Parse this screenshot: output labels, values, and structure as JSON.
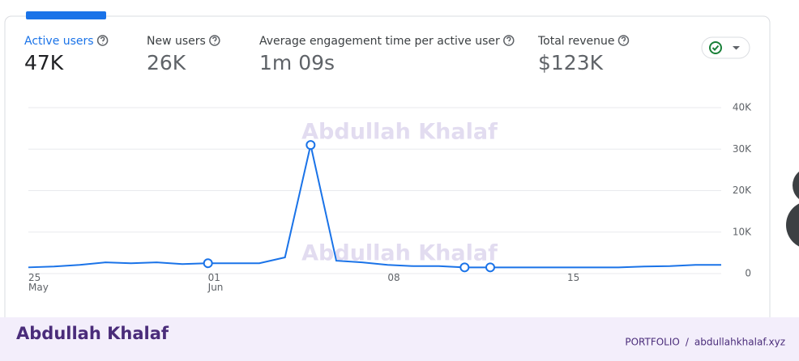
{
  "metrics": [
    {
      "label": "Active users",
      "value": "47K"
    },
    {
      "label": "New users",
      "value": "26K"
    },
    {
      "label": "Average engagement time per active user",
      "value": "1m 09s"
    },
    {
      "label": "Total revenue",
      "value": "$123K"
    }
  ],
  "watermark": "Abdullah Khalaf",
  "chart_data": {
    "type": "line",
    "categories": [
      "25\nMay",
      null,
      null,
      null,
      null,
      null,
      null,
      "01\nJun",
      null,
      null,
      null,
      null,
      null,
      null,
      "08",
      null,
      null,
      null,
      null,
      null,
      null,
      "15",
      null,
      null,
      null,
      null,
      null,
      null
    ],
    "series": [
      {
        "name": "Active users",
        "color": "#1a73e8",
        "values": [
          1500,
          1700,
          2100,
          2700,
          2500,
          2700,
          2300,
          2500,
          2500,
          2500,
          3900,
          31000,
          3100,
          2700,
          2100,
          1800,
          1800,
          1500,
          1500,
          1500,
          1500,
          1500,
          1500,
          1500,
          1700,
          1800,
          2100,
          2100
        ],
        "marker_indices": [
          7,
          11,
          17,
          18
        ]
      }
    ],
    "ylim": [
      0,
      40000
    ],
    "yticks": [
      {
        "value": 0,
        "label": "0"
      },
      {
        "value": 10000,
        "label": "10K"
      },
      {
        "value": 20000,
        "label": "20K"
      },
      {
        "value": 30000,
        "label": "30K"
      },
      {
        "value": 40000,
        "label": "40K"
      }
    ],
    "grid": true
  },
  "footer": {
    "brand": "Abdullah Khalaf",
    "links": [
      "PORTFOLIO",
      "/",
      "abdullahkhalaf.xyz"
    ]
  }
}
